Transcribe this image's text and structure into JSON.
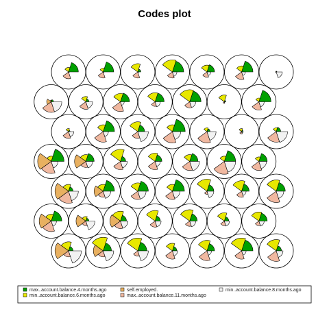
{
  "chart_data": {
    "type": "som-codes-fan",
    "title": "Codes plot",
    "grid": {
      "rows": 7,
      "cols": 7,
      "topology": "hexagonal"
    },
    "series": [
      {
        "name": "max..account.balance.4.months.ago",
        "color": "#00a000"
      },
      {
        "name": "min..account.balance.6.months.ago",
        "color": "#e8e800"
      },
      {
        "name": "self.employed.",
        "color": "#e8b060"
      },
      {
        "name": "max..account.balance.11.months.ago",
        "color": "#f0b8a0"
      },
      {
        "name": "min..account.balance.8.months.ago",
        "color": "#f2f2f2"
      }
    ],
    "units": [
      [
        [
          0.65,
          0.3,
          0.0,
          0.45,
          0.05
        ],
        [
          0.7,
          0.25,
          0.0,
          0.4,
          0.05
        ],
        [
          0.2,
          0.55,
          0.0,
          0.4,
          0.05
        ],
        [
          0.75,
          0.8,
          0.0,
          0.4,
          0.3
        ],
        [
          0.5,
          0.45,
          0.0,
          0.35,
          0.25
        ],
        [
          0.75,
          0.4,
          0.0,
          0.5,
          0.25
        ],
        [
          0.05,
          0.05,
          0.0,
          0.05,
          0.4
        ]
      ],
      [
        [
          0.15,
          0.1,
          0.3,
          0.7,
          0.7
        ],
        [
          0.2,
          0.35,
          0.0,
          0.5,
          0.45
        ],
        [
          0.6,
          0.55,
          0.0,
          0.65,
          0.25
        ],
        [
          0.6,
          0.6,
          0.0,
          0.3,
          0.35
        ],
        [
          0.75,
          0.8,
          0.0,
          0.4,
          0.4
        ],
        [
          0.1,
          0.45,
          0.0,
          0.1,
          0.05
        ],
        [
          0.8,
          0.25,
          0.0,
          0.55,
          0.35
        ]
      ],
      [
        [
          0.1,
          0.2,
          0.0,
          0.45,
          0.35
        ],
        [
          0.75,
          0.45,
          0.0,
          0.7,
          0.35
        ],
        [
          0.45,
          0.65,
          0.0,
          0.45,
          0.7
        ],
        [
          0.85,
          0.45,
          0.0,
          0.75,
          0.55
        ],
        [
          0.2,
          0.25,
          0.0,
          0.75,
          0.6
        ],
        [
          0.1,
          0.2,
          0.0,
          0.15,
          0.1
        ],
        [
          0.3,
          0.25,
          0.0,
          0.7,
          0.75
        ]
      ],
      [
        [
          0.85,
          0.35,
          0.9,
          0.8,
          0.45
        ],
        [
          0.55,
          0.45,
          0.75,
          0.4,
          0.45
        ],
        [
          0.35,
          0.8,
          0.0,
          0.55,
          0.45
        ],
        [
          0.45,
          0.55,
          0.0,
          0.55,
          0.35
        ],
        [
          0.55,
          0.45,
          0.0,
          0.6,
          0.65
        ],
        [
          0.75,
          0.35,
          0.0,
          0.85,
          0.75
        ],
        [
          0.55,
          0.3,
          0.0,
          0.6,
          0.5
        ]
      ],
      [
        [
          0.3,
          0.45,
          0.9,
          0.8,
          0.65
        ],
        [
          0.75,
          0.45,
          0.6,
          0.4,
          0.5
        ],
        [
          0.7,
          0.55,
          0.0,
          0.55,
          0.55
        ],
        [
          0.8,
          0.45,
          0.0,
          0.55,
          0.5
        ],
        [
          0.45,
          0.8,
          0.0,
          0.2,
          0.45
        ],
        [
          0.5,
          0.7,
          0.0,
          0.4,
          0.3
        ],
        [
          0.6,
          0.75,
          0.0,
          0.75,
          0.5
        ]
      ],
      [
        [
          0.7,
          0.45,
          0.8,
          0.7,
          0.35
        ],
        [
          0.2,
          0.3,
          0.65,
          0.3,
          0.6
        ],
        [
          0.4,
          0.65,
          0.7,
          0.5,
          0.5
        ],
        [
          0.35,
          0.7,
          0.0,
          0.4,
          0.4
        ],
        [
          0.5,
          0.75,
          0.0,
          0.35,
          0.4
        ],
        [
          0.3,
          0.55,
          0.0,
          0.3,
          0.35
        ],
        [
          0.55,
          0.6,
          0.0,
          0.3,
          0.35
        ]
      ],
      [
        [
          0.3,
          0.6,
          0.9,
          0.4,
          0.85
        ],
        [
          0.55,
          0.9,
          0.65,
          0.4,
          0.7
        ],
        [
          0.6,
          0.85,
          0.0,
          0.35,
          0.7
        ],
        [
          0.3,
          0.5,
          0.0,
          0.55,
          0.35
        ],
        [
          0.5,
          0.7,
          0.0,
          0.65,
          0.3
        ],
        [
          0.75,
          0.85,
          0.0,
          0.55,
          0.3
        ],
        [
          0.35,
          0.75,
          0.0,
          0.7,
          0.45
        ]
      ]
    ]
  }
}
